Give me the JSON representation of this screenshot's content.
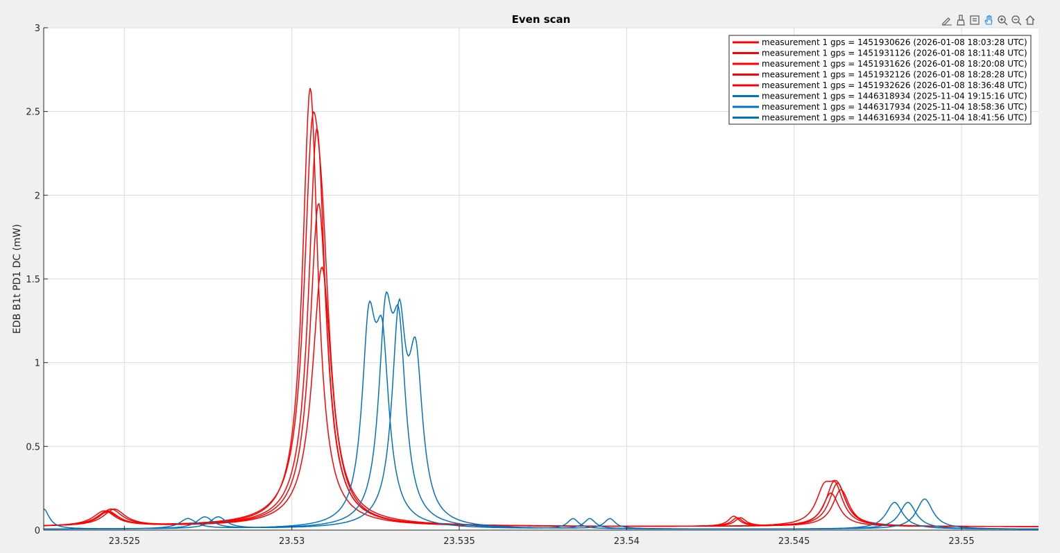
{
  "figure": {
    "title": "Even scan",
    "toolbar": [
      {
        "name": "edit-icon"
      },
      {
        "name": "brush-icon"
      },
      {
        "name": "datatips-icon"
      },
      {
        "name": "pan-icon"
      },
      {
        "name": "zoom-in-icon"
      },
      {
        "name": "zoom-out-icon"
      },
      {
        "name": "home-icon"
      }
    ]
  },
  "chart_data": {
    "type": "line",
    "title": "Even scan",
    "xlabel": "",
    "ylabel": "EDB B1t PD1 DC (mW)",
    "xlim": [
      23.52259,
      23.5523
    ],
    "ylim": [
      0,
      3
    ],
    "xticks": [
      23.525,
      23.53,
      23.535,
      23.54,
      23.545,
      23.55
    ],
    "xtick_labels": [
      "23.525",
      "23.53",
      "23.535",
      "23.54",
      "23.545",
      "23.55"
    ],
    "yticks": [
      0,
      0.5,
      1,
      1.5,
      2,
      2.5,
      3
    ],
    "ytick_labels": [
      "0",
      "0.5",
      "1",
      "1.5",
      "2",
      "2.5",
      "3"
    ],
    "grid": true,
    "legend_position": "top-right",
    "colors": {
      "red": "#ff0000",
      "blue": "#0072bd"
    },
    "series": [
      {
        "name": "measurement 1 gps = 1451930626 (2026-01-08 18:03:28 UTC)",
        "color": "#ff0000",
        "peaks": [
          {
            "x": 23.5246,
            "h": 0.1,
            "w": 0.0004
          },
          {
            "x": 23.53055,
            "h": 2.62,
            "w": 0.00028
          },
          {
            "x": 23.5462,
            "h": 0.27,
            "w": 0.0003
          },
          {
            "x": 23.5433,
            "h": 0.05,
            "w": 0.0002
          }
        ],
        "baseline": 0.02
      },
      {
        "name": "measurement 1 gps = 1451931126 (2026-01-08 18:11:48 UTC)",
        "color": "#ff0000",
        "peaks": [
          {
            "x": 23.5244,
            "h": 0.09,
            "w": 0.0004
          },
          {
            "x": 23.53075,
            "h": 2.38,
            "w": 0.0003
          },
          {
            "x": 23.5463,
            "h": 0.26,
            "w": 0.0003
          },
          {
            "x": 23.5434,
            "h": 0.05,
            "w": 0.0002
          }
        ],
        "baseline": 0.02
      },
      {
        "name": "measurement 1 gps = 1451931626 (2026-01-08 18:20:08 UTC)",
        "color": "#ff0000",
        "peaks": [
          {
            "x": 23.5245,
            "h": 0.08,
            "w": 0.0004
          },
          {
            "x": 23.5306,
            "h": 1.88,
            "w": 0.0003
          },
          {
            "x": 23.5309,
            "h": 1.1,
            "w": 0.0003
          },
          {
            "x": 23.5461,
            "h": 0.2,
            "w": 0.0003
          }
        ],
        "baseline": 0.02
      },
      {
        "name": "measurement 1 gps = 1451932126 (2026-01-08 18:28:28 UTC)",
        "color": "#ff0000",
        "peaks": [
          {
            "x": 23.5247,
            "h": 0.1,
            "w": 0.0004
          },
          {
            "x": 23.5308,
            "h": 1.93,
            "w": 0.00032
          },
          {
            "x": 23.5464,
            "h": 0.22,
            "w": 0.0003
          },
          {
            "x": 23.5432,
            "h": 0.06,
            "w": 0.0002
          }
        ],
        "baseline": 0.02
      },
      {
        "name": "measurement 1 gps = 1451932626 (2026-01-08 18:36:48 UTC)",
        "color": "#ff0000",
        "peaks": [
          {
            "x": 23.5245,
            "h": 0.09,
            "w": 0.0004
          },
          {
            "x": 23.5309,
            "h": 1.55,
            "w": 0.00035
          },
          {
            "x": 23.5459,
            "h": 0.19,
            "w": 0.0003
          },
          {
            "x": 23.5463,
            "h": 0.2,
            "w": 0.0003
          }
        ],
        "baseline": 0.02
      },
      {
        "name": "measurement 1 gps = 1446318934 (2025-11-04 19:15:16 UTC)",
        "color": "#0072bd",
        "peaks": [
          {
            "x": 23.5323,
            "h": 1.08,
            "w": 0.00025
          },
          {
            "x": 23.5327,
            "h": 0.95,
            "w": 0.00025
          },
          {
            "x": 23.5269,
            "h": 0.06,
            "w": 0.0003
          },
          {
            "x": 23.5384,
            "h": 0.06,
            "w": 0.0002
          },
          {
            "x": 23.548,
            "h": 0.16,
            "w": 0.0003
          }
        ],
        "baseline": 0.005
      },
      {
        "name": "measurement 1 gps = 1446317934 (2025-11-04 18:58:36 UTC)",
        "color": "#0072bd",
        "peaks": [
          {
            "x": 23.5328,
            "h": 1.12,
            "w": 0.00025
          },
          {
            "x": 23.5332,
            "h": 1.0,
            "w": 0.00025
          },
          {
            "x": 23.5274,
            "h": 0.07,
            "w": 0.0003
          },
          {
            "x": 23.5389,
            "h": 0.06,
            "w": 0.0002
          },
          {
            "x": 23.5484,
            "h": 0.16,
            "w": 0.0003
          }
        ],
        "baseline": 0.005
      },
      {
        "name": "measurement 1 gps = 1446316934 (2025-11-04 18:41:56 UTC)",
        "color": "#0072bd",
        "peaks": [
          {
            "x": 23.5332,
            "h": 1.19,
            "w": 0.00025
          },
          {
            "x": 23.5337,
            "h": 0.9,
            "w": 0.00025
          },
          {
            "x": 23.5278,
            "h": 0.07,
            "w": 0.0003
          },
          {
            "x": 23.5395,
            "h": 0.06,
            "w": 0.0002
          },
          {
            "x": 23.5489,
            "h": 0.18,
            "w": 0.0003
          },
          {
            "x": 23.52259,
            "h": 0.12,
            "w": 0.0002
          }
        ],
        "baseline": 0.005
      }
    ]
  }
}
